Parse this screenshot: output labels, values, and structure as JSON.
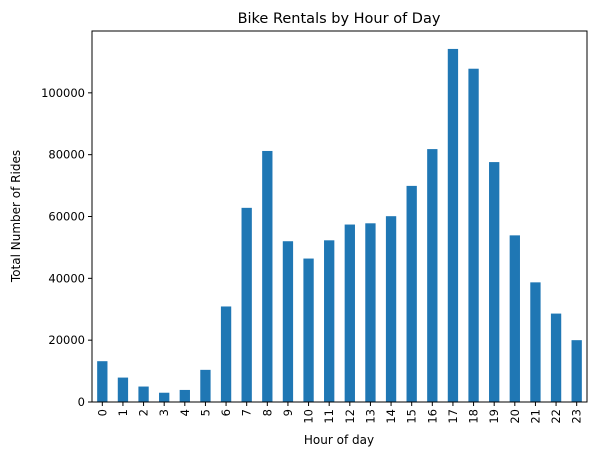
{
  "chart_data": {
    "type": "bar",
    "title": "Bike Rentals by Hour of Day",
    "xlabel": "Hour of day",
    "ylabel": "Total Number of Rides",
    "categories": [
      "0",
      "1",
      "2",
      "3",
      "4",
      "5",
      "6",
      "7",
      "8",
      "9",
      "10",
      "11",
      "12",
      "13",
      "14",
      "15",
      "16",
      "17",
      "18",
      "19",
      "20",
      "21",
      "22",
      "23"
    ],
    "values": [
      13200,
      7900,
      5000,
      3000,
      3900,
      10400,
      30900,
      62800,
      81200,
      52000,
      46400,
      52300,
      57400,
      57800,
      60100,
      69900,
      81800,
      114200,
      107800,
      77600,
      53900,
      38700,
      28600,
      20000
    ],
    "ylim": [
      0,
      120000
    ],
    "yticks": [
      0,
      20000,
      40000,
      60000,
      80000,
      100000
    ],
    "ytick_labels": [
      "0",
      "20000",
      "40000",
      "60000",
      "80000",
      "100000"
    ],
    "bar_color": "#1f77b4",
    "grid": false,
    "legend": false
  }
}
